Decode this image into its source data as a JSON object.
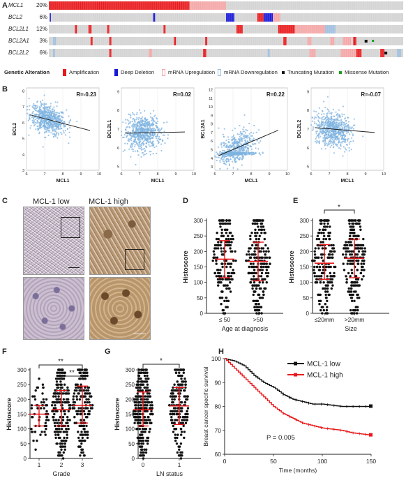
{
  "panel_labels": {
    "a": "A",
    "b": "B",
    "c": "C",
    "d": "D",
    "e": "E",
    "f": "F",
    "g": "G",
    "h": "H"
  },
  "oncoprint": {
    "genes": [
      {
        "name": "MCL1",
        "pct": "20%"
      },
      {
        "name": "BCL2",
        "pct": "6%"
      },
      {
        "name": "BCL2L1",
        "pct": "12%"
      },
      {
        "name": "BCL2A1",
        "pct": "3%"
      },
      {
        "name": "BCL2L2",
        "pct": "6%"
      }
    ],
    "legend_title": "Genetic Alteration",
    "legend": [
      {
        "label": "Amplification",
        "color": "#e8191c"
      },
      {
        "label": "Deep Deletion",
        "color": "#1a1ad6"
      },
      {
        "label": "mRNA Upregulation",
        "color": "#f4a6a6"
      },
      {
        "label": "mRNA Downregulation",
        "color": "#9fbfe0"
      },
      {
        "label": "Truncating Mutation",
        "color": "#111111"
      },
      {
        "label": "Missense Mutation",
        "color": "#1aa01a"
      }
    ],
    "colors": {
      "none": "#d3d3d3",
      "amp": "#e8191c",
      "del": "#1a1ad6",
      "up": "#f4a6a6",
      "down": "#9fbfe0"
    }
  },
  "scatter_panels": [
    {
      "ylabel": "BCL2",
      "xlabel": "MCL1",
      "r": "R=-0.23",
      "yticks": [
        "3",
        "4",
        "5",
        "6",
        "7",
        "8"
      ],
      "xticks": [
        "6",
        "7",
        "8",
        "9",
        "10"
      ]
    },
    {
      "ylabel": "BCL2L1",
      "xlabel": "MCL1",
      "r": "R=0.02",
      "yticks": [
        "5",
        "6",
        "7",
        "8",
        "9"
      ],
      "xticks": [
        "6",
        "7",
        "8",
        "9",
        "10"
      ]
    },
    {
      "ylabel": "BCL2A1",
      "xlabel": "MCL1",
      "r": "R=0.22",
      "yticks": [
        "3",
        "4",
        "5",
        "6",
        "7",
        "8",
        "9",
        "10",
        "11",
        "12"
      ],
      "xticks": [
        "6",
        "7",
        "8",
        "9",
        "10"
      ]
    },
    {
      "ylabel": "BCL2L2",
      "xlabel": "MCL1",
      "r": "R=-0.07",
      "yticks": [
        "5",
        "6",
        "7",
        "8",
        "9"
      ],
      "xticks": [
        "6",
        "7",
        "8",
        "9",
        "10"
      ]
    }
  ],
  "ihc": {
    "low_label": "MCL-1 low",
    "high_label": "MCL-1 high"
  },
  "chart_data": [
    {
      "type": "scatter",
      "panel": "D",
      "ylabel": "Histoscore",
      "xlabel": "Age at diagnosis",
      "categories": [
        "≤ 50",
        ">50"
      ],
      "medians": [
        175,
        168
      ],
      "q1": [
        115,
        105
      ],
      "q3": [
        235,
        230
      ],
      "ylim": [
        0,
        300
      ],
      "yticks": [
        "0",
        "50",
        "100",
        "150",
        "200",
        "250",
        "300"
      ]
    },
    {
      "type": "scatter",
      "panel": "E",
      "ylabel": "Histoscore",
      "xlabel": "Size",
      "categories": [
        "≤20mm",
        ">20mm"
      ],
      "medians": [
        162,
        178
      ],
      "q1": [
        110,
        115
      ],
      "q3": [
        222,
        240
      ],
      "ylim": [
        0,
        300
      ],
      "yticks": [
        "0",
        "50",
        "100",
        "150",
        "200",
        "250",
        "300"
      ],
      "annotations": [
        "*"
      ]
    },
    {
      "type": "scatter",
      "panel": "F",
      "ylabel": "Histoscore",
      "xlabel": "Grade",
      "categories": [
        "1",
        "2",
        "3"
      ],
      "medians": [
        150,
        165,
        180
      ],
      "q1": [
        110,
        110,
        120
      ],
      "q3": [
        180,
        230,
        245
      ],
      "ylim": [
        0,
        300
      ],
      "yticks": [
        "0",
        "50",
        "100",
        "150",
        "200",
        "250",
        "300"
      ],
      "annotations": [
        "**",
        "**"
      ]
    },
    {
      "type": "scatter",
      "panel": "G",
      "ylabel": "Histoscore",
      "xlabel": "LN status",
      "categories": [
        "0",
        "1"
      ],
      "medians": [
        165,
        178
      ],
      "q1": [
        110,
        115
      ],
      "q3": [
        225,
        240
      ],
      "ylim": [
        0,
        300
      ],
      "yticks": [
        "0",
        "50",
        "100",
        "150",
        "200",
        "250",
        "300"
      ],
      "annotations": [
        "*"
      ]
    },
    {
      "type": "line",
      "panel": "H",
      "ylabel": "Breast cancer specific survival",
      "xlabel": "Time (months)",
      "xlim": [
        0,
        150
      ],
      "ylim": [
        60,
        100
      ],
      "xticks": [
        "0",
        "50",
        "100",
        "150"
      ],
      "yticks": [
        "60",
        "70",
        "80",
        "90",
        "100"
      ],
      "annotation": "P = 0.005",
      "series": [
        {
          "name": "MCL-1 low",
          "color": "#111111",
          "x": [
            0,
            10,
            20,
            30,
            40,
            50,
            60,
            70,
            80,
            90,
            100,
            110,
            120,
            130,
            140,
            150
          ],
          "y": [
            100,
            99,
            97,
            93,
            90,
            88,
            85,
            83,
            82,
            81,
            81,
            80.5,
            80,
            80,
            80,
            80
          ]
        },
        {
          "name": "MCL-1 high",
          "color": "#e8191c",
          "x": [
            0,
            10,
            20,
            30,
            40,
            50,
            60,
            70,
            80,
            90,
            100,
            110,
            120,
            130,
            140,
            150
          ],
          "y": [
            100,
            96,
            92,
            88,
            84,
            80,
            77,
            75,
            73,
            72,
            71,
            70.5,
            70,
            69,
            68.5,
            68
          ]
        }
      ]
    }
  ]
}
